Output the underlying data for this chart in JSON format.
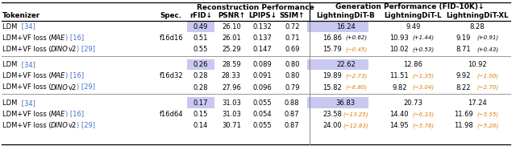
{
  "title_left": "Reconstruction Performance",
  "title_right": "Generation Performance (FID-10K)↓",
  "highlight_color": "#c8c8f0",
  "link_color": "#4472c4",
  "orange_color": "#e07800",
  "bg_color": "#ffffff",
  "groups": [
    {
      "spec": "f16d16",
      "rows": [
        {
          "tok_parts": [
            [
              "LDM ",
              "n",
              "k"
            ],
            [
              " [34]",
              "n",
              "b"
            ]
          ],
          "spec_show": false,
          "rFID": "0.49",
          "PSNR": "26.10",
          "LPIPS": "0.132",
          "SSIM": "0.72",
          "B": "16.24",
          "B_delta": "",
          "B_dc": "",
          "L": "9.49",
          "L_delta": "",
          "L_dc": "",
          "XL": "8.28",
          "XL_delta": "",
          "XL_dc": "",
          "hl_rFID": true,
          "hl_B": true
        },
        {
          "tok_parts": [
            [
              "LDM+VF loss (",
              "n",
              "k"
            ],
            [
              "MAE",
              "i",
              "k"
            ],
            [
              ") [16]",
              "n",
              "b"
            ]
          ],
          "spec_show": true,
          "rFID": "0.51",
          "PSNR": "26.01",
          "LPIPS": "0.137",
          "SSIM": "0.71",
          "B": "16.86",
          "B_delta": "(+0.62)",
          "B_dc": "k",
          "L": "10.93",
          "L_delta": "(+1.44)",
          "L_dc": "k",
          "XL": "9.19",
          "XL_delta": "(+0.91)",
          "XL_dc": "k",
          "hl_rFID": false,
          "hl_B": false
        },
        {
          "tok_parts": [
            [
              "LDM+VF loss (",
              "n",
              "k"
            ],
            [
              "DINO",
              "i",
              "k"
            ],
            [
              "v2",
              "n",
              "k"
            ],
            [
              ") [29]",
              "n",
              "b"
            ]
          ],
          "spec_show": false,
          "rFID": "0.55",
          "PSNR": "25.29",
          "LPIPS": "0.147",
          "SSIM": "0.69",
          "B": "15.79",
          "B_delta": "(−0.45)",
          "B_dc": "o",
          "L": "10.02",
          "L_delta": "(+0.53)",
          "L_dc": "k",
          "XL": "8.71",
          "XL_delta": "(+0.43)",
          "XL_dc": "k",
          "hl_rFID": false,
          "hl_B": false
        }
      ]
    },
    {
      "spec": "f16d32",
      "rows": [
        {
          "tok_parts": [
            [
              "LDM ",
              "n",
              "k"
            ],
            [
              " [34]",
              "n",
              "b"
            ]
          ],
          "spec_show": false,
          "rFID": "0.26",
          "PSNR": "28.59",
          "LPIPS": "0.089",
          "SSIM": "0.80",
          "B": "22.62",
          "B_delta": "",
          "B_dc": "",
          "L": "12.86",
          "L_delta": "",
          "L_dc": "",
          "XL": "10.92",
          "XL_delta": "",
          "XL_dc": "",
          "hl_rFID": true,
          "hl_B": true
        },
        {
          "tok_parts": [
            [
              "LDM+VF loss (",
              "n",
              "k"
            ],
            [
              "MAE",
              "i",
              "k"
            ],
            [
              ") [16]",
              "n",
              "b"
            ]
          ],
          "spec_show": true,
          "rFID": "0.28",
          "PSNR": "28.33",
          "LPIPS": "0.091",
          "SSIM": "0.80",
          "B": "19.89",
          "B_delta": "(−2.73)",
          "B_dc": "o",
          "L": "11.51",
          "L_delta": "(−1.35)",
          "L_dc": "o",
          "XL": "9.92",
          "XL_delta": "(−1.00)",
          "XL_dc": "o",
          "hl_rFID": false,
          "hl_B": false
        },
        {
          "tok_parts": [
            [
              "LDM+VF loss (",
              "n",
              "k"
            ],
            [
              "DINO",
              "i",
              "k"
            ],
            [
              "v2",
              "n",
              "k"
            ],
            [
              ") [29]",
              "n",
              "b"
            ]
          ],
          "spec_show": false,
          "rFID": "0.28",
          "PSNR": "27.96",
          "LPIPS": "0.096",
          "SSIM": "0.79",
          "B": "15.82",
          "B_delta": "(−6.80)",
          "B_dc": "o",
          "L": "9.82",
          "L_delta": "(−3.04)",
          "L_dc": "o",
          "XL": "8.22",
          "XL_delta": "(−2.70)",
          "XL_dc": "o",
          "hl_rFID": false,
          "hl_B": false
        }
      ]
    },
    {
      "spec": "f16d64",
      "rows": [
        {
          "tok_parts": [
            [
              "LDM ",
              "n",
              "k"
            ],
            [
              " [34]",
              "n",
              "b"
            ]
          ],
          "spec_show": false,
          "rFID": "0.17",
          "PSNR": "31.03",
          "LPIPS": "0.055",
          "SSIM": "0.88",
          "B": "36.83",
          "B_delta": "",
          "B_dc": "",
          "L": "20.73",
          "L_delta": "",
          "L_dc": "",
          "XL": "17.24",
          "XL_delta": "",
          "XL_dc": "",
          "hl_rFID": true,
          "hl_B": true
        },
        {
          "tok_parts": [
            [
              "LDM+VF loss (",
              "n",
              "k"
            ],
            [
              "MAE",
              "i",
              "k"
            ],
            [
              ") [16]",
              "n",
              "b"
            ]
          ],
          "spec_show": true,
          "rFID": "0.15",
          "PSNR": "31.03",
          "LPIPS": "0.054",
          "SSIM": "0.87",
          "B": "23.58",
          "B_delta": "(−13.25)",
          "B_dc": "o",
          "L": "14.40",
          "L_delta": "(−6.33)",
          "L_dc": "o",
          "XL": "11.69",
          "XL_delta": "(−5.55)",
          "XL_dc": "o",
          "hl_rFID": false,
          "hl_B": false
        },
        {
          "tok_parts": [
            [
              "LDM+VF loss (",
              "n",
              "k"
            ],
            [
              "DINO",
              "i",
              "k"
            ],
            [
              "v2",
              "n",
              "k"
            ],
            [
              ") [29]",
              "n",
              "b"
            ]
          ],
          "spec_show": false,
          "rFID": "0.14",
          "PSNR": "30.71",
          "LPIPS": "0.055",
          "SSIM": "0.87",
          "B": "24.00",
          "B_delta": "(−12.83)",
          "B_dc": "o",
          "L": "14.95",
          "L_delta": "(−5.78)",
          "L_dc": "o",
          "XL": "11.98",
          "XL_delta": "(−5.26)",
          "XL_dc": "o",
          "hl_rFID": false,
          "hl_B": false
        }
      ]
    }
  ]
}
